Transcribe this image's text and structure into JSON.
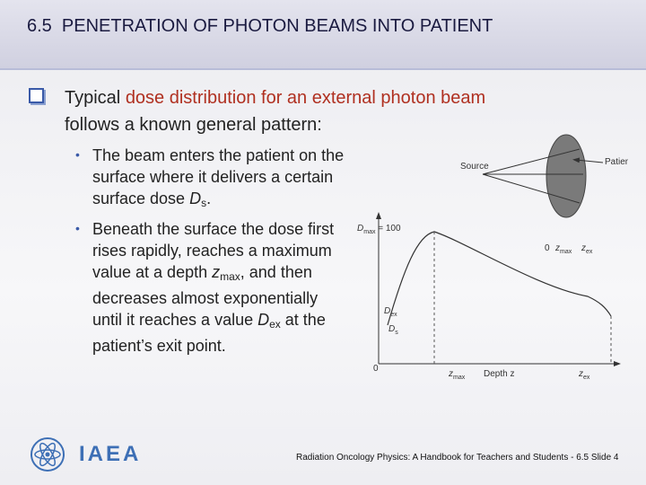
{
  "header": {
    "title": "6.5  PENETRATION OF PHOTON BEAMS INTO PATIENT"
  },
  "main_bullet": {
    "before": "Typical ",
    "highlight": "dose distribution for an external photon beam",
    "after": "follows a known general pattern:"
  },
  "sub_bullets": [
    {
      "runs": [
        {
          "text": "The beam enters the patient on the surface where it delivers a certain surface dose ",
          "style": "normal"
        },
        {
          "text": "D",
          "style": "italic"
        },
        {
          "text": "s",
          "style": "sub"
        },
        {
          "text": ".",
          "style": "normal"
        }
      ]
    },
    {
      "runs": [
        {
          "text": "Beneath the surface the dose first rises rapidly, reaches a maximum value at a depth ",
          "style": "normal"
        },
        {
          "text": "z",
          "style": "italic"
        },
        {
          "text": "max",
          "style": "sub"
        },
        {
          "text": ", and then decreases almost exponentially until it reaches a value ",
          "style": "normal"
        },
        {
          "text": "D",
          "style": "italic"
        },
        {
          "text": "ex",
          "style": "sub"
        },
        {
          "text": " at the patient’s exit point.",
          "style": "normal"
        }
      ]
    }
  ],
  "figure": {
    "labels": [
      {
        "text": "Source"
      },
      {
        "text": "Patient"
      },
      {
        "text": "0"
      },
      {
        "text": "z",
        "sub": "max"
      },
      {
        "text": "z",
        "sub": "ex"
      },
      {
        "text": "D",
        "sub": "max",
        "after": " = 100"
      },
      {
        "text": "D",
        "sub": "ex"
      },
      {
        "text": "D",
        "sub": "s"
      },
      {
        "text": "0"
      },
      {
        "text": "z",
        "sub": "max"
      },
      {
        "text": "Depth z"
      },
      {
        "text": "z",
        "sub": "ex"
      }
    ]
  },
  "footer": {
    "logo": "IAEA",
    "text": "Radiation Oncology Physics: A Handbook for Teachers and Students - 6.5 Slide 4"
  }
}
